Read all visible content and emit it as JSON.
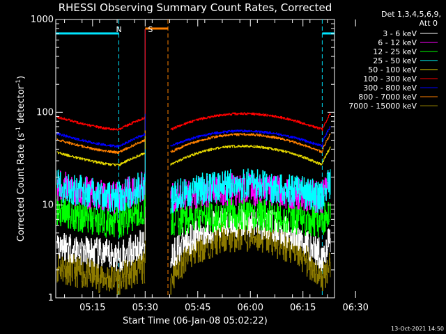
{
  "chart_data": {
    "type": "line",
    "title": "RHESSI Observing Summary Count Rates, Corrected",
    "xlabel": "Start Time (06-Jan-08 05:02:22)",
    "ylabel": "Corrected Count Rate (s",
    "ylabel_sup1": "-1",
    "ylabel_mid": " detector",
    "ylabel_sup2": "-1",
    "ylabel_end": ")",
    "yscale": "log",
    "ylim": [
      1,
      1000
    ],
    "xlim_min": [
      2.5,
      82.0
    ],
    "y_tick_labels": [
      "1",
      "10",
      "100",
      "1000"
    ],
    "x_ticks": [
      {
        "t": 13,
        "label": "05:15"
      },
      {
        "t": 28,
        "label": "05:30"
      },
      {
        "t": 43,
        "label": "05:45"
      },
      {
        "t": 58,
        "label": "06:00"
      },
      {
        "t": 73,
        "label": "06:15"
      },
      {
        "t": 88,
        "label": "06:30"
      }
    ],
    "legend": {
      "header1": "Det 1,3,4,5,6,9,",
      "header2": "Att 0",
      "position": "top-right"
    },
    "series": [
      {
        "name": "3 - 6 keV",
        "color": "#ffffff",
        "day": 7,
        "pre": 2.8,
        "post": 2.8
      },
      {
        "name": "6 - 12 keV",
        "color": "#ff00ff",
        "day": 15,
        "pre": 12,
        "post": 12
      },
      {
        "name": "12 - 25 keV",
        "color": "#00ff00",
        "day": 8,
        "pre": 6.5,
        "post": 6.5
      },
      {
        "name": "25 - 50 keV",
        "color": "#00ffff",
        "day": 17,
        "pre": 12,
        "post": 12
      },
      {
        "name": "50 - 100 keV",
        "color": "#e6d800",
        "day": 45,
        "pre": 27,
        "post": 28
      },
      {
        "name": "100 - 300 keV",
        "color": "#ff0000",
        "day": 100,
        "pre": 65,
        "post": 65
      },
      {
        "name": "300 - 800 keV",
        "color": "#0000ff",
        "day": 65,
        "pre": 43,
        "post": 47
      },
      {
        "name": "800 - 7000 keV",
        "color": "#ff8000",
        "day": 60,
        "pre": 37,
        "post": 39
      },
      {
        "name": "7000 - 15000 keV",
        "color": "#8c7a00",
        "day": 5,
        "pre": 1.6,
        "post": 1.6
      }
    ],
    "annotations": [
      {
        "label": "N",
        "color": "#00e5ff",
        "t": 20.5
      },
      {
        "label": "S",
        "color": "#ff8000",
        "t": 29.5
      }
    ],
    "saa_interval_min": [
      28.0,
      34.5
    ],
    "night_intervals_min": [
      [
        -2.0,
        20.5
      ],
      [
        78.5,
        97.0
      ]
    ]
  },
  "footer": {
    "timestamp": "13-Oct-2021 14:50"
  },
  "colors": {
    "background": "#000000",
    "axes": "#ffffff",
    "night": "#00e5ff",
    "saa": "#ff8000"
  }
}
